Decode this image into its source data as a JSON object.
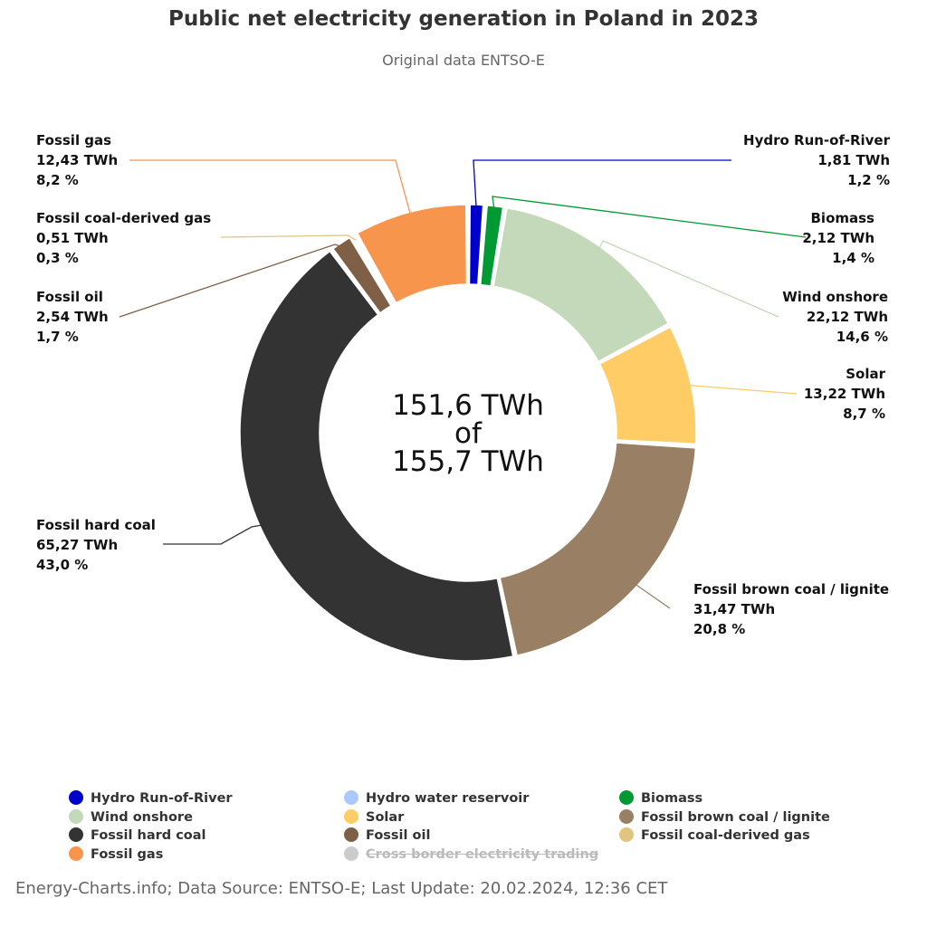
{
  "chart_data": {
    "type": "pie",
    "variant": "donut",
    "title": "Public net electricity generation in Poland in 2023",
    "subtitle": "Original data ENTSO-E",
    "center_text": [
      "151,6 TWh",
      "of",
      "155,7 TWh"
    ],
    "slices": [
      {
        "name": "Hydro Run-of-River",
        "value": 1.81,
        "value_label": "1,81 TWh",
        "percent_label": "1,2 %",
        "color": "#0000cc"
      },
      {
        "name": "Biomass",
        "value": 2.12,
        "value_label": "2,12 TWh",
        "percent_label": "1,4 %",
        "color": "#009933"
      },
      {
        "name": "Wind onshore",
        "value": 22.12,
        "value_label": "22,12 TWh",
        "percent_label": "14,6 %",
        "color": "#c4d9b9"
      },
      {
        "name": "Solar",
        "value": 13.22,
        "value_label": "13,22 TWh",
        "percent_label": "8,7 %",
        "color": "#ffcc66"
      },
      {
        "name": "Fossil brown coal / lignite",
        "value": 31.47,
        "value_label": "31,47 TWh",
        "percent_label": "20,8 %",
        "color": "#997f63"
      },
      {
        "name": "Fossil hard coal",
        "value": 65.27,
        "value_label": "65,27 TWh",
        "percent_label": "43,0 %",
        "color": "#333333"
      },
      {
        "name": "Fossil oil",
        "value": 2.54,
        "value_label": "2,54 TWh",
        "percent_label": "1,7 %",
        "color": "#7f5f46"
      },
      {
        "name": "Fossil coal-derived gas",
        "value": 0.51,
        "value_label": "0,51 TWh",
        "percent_label": "0,3 %",
        "color": "#e0c47f"
      },
      {
        "name": "Fossil gas",
        "value": 12.43,
        "value_label": "12,43 TWh",
        "percent_label": "8,2 %",
        "color": "#f7954d"
      }
    ],
    "legend_position": "bottom",
    "legend": [
      {
        "name": "Hydro Run-of-River",
        "color": "#0000cc",
        "hidden": false
      },
      {
        "name": "Hydro water reservoir",
        "color": "#abc9ff",
        "hidden": false
      },
      {
        "name": "Biomass",
        "color": "#009933",
        "hidden": false
      },
      {
        "name": "Wind onshore",
        "color": "#c4d9b9",
        "hidden": false
      },
      {
        "name": "Solar",
        "color": "#ffcc66",
        "hidden": false
      },
      {
        "name": "Fossil brown coal / lignite",
        "color": "#997f63",
        "hidden": false
      },
      {
        "name": "Fossil hard coal",
        "color": "#333333",
        "hidden": false
      },
      {
        "name": "Fossil oil",
        "color": "#7f5f46",
        "hidden": false
      },
      {
        "name": "Fossil coal-derived gas",
        "color": "#e0c47f",
        "hidden": false
      },
      {
        "name": "Fossil gas",
        "color": "#f7954d",
        "hidden": false
      },
      {
        "name": "Cross border electricity trading",
        "color": "#cccccc",
        "hidden": true
      }
    ]
  },
  "footer": "Energy-Charts.info; Data Source: ENTSO-E; Last Update: 20.02.2024, 12:36 CET"
}
